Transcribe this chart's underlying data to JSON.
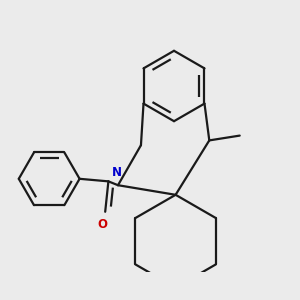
{
  "background_color": "#ebebeb",
  "line_color": "#1a1a1a",
  "bond_lw": 1.6,
  "N_color": "#0000cc",
  "O_color": "#cc0000",
  "figsize": [
    3.0,
    3.0
  ],
  "dpi": 100
}
